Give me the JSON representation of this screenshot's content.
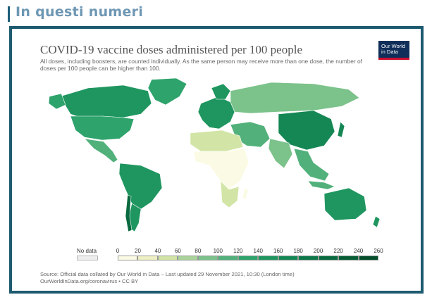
{
  "page": {
    "header_title": "In questi numeri"
  },
  "chart": {
    "title": "COVID-19 vaccine doses administered per 100 people",
    "subtitle": "All doses, including boosters, are counted individually. As the same person may receive more than one dose, the number of doses per 100 people can be higher than 100.",
    "logo_line1": "Our World",
    "logo_line2": "in Data",
    "source_line1": "Source: Official data collated by Our World in Data – Last updated 29 November 2021, 10:30 (London time)",
    "source_line2": "OurWorldInData.org/coronavirus • CC BY"
  },
  "legend": {
    "nodata_label": "No data",
    "nodata_color": "#eeeeee",
    "ticks": [
      "0",
      "20",
      "40",
      "60",
      "80",
      "100",
      "120",
      "140",
      "160",
      "180",
      "200",
      "220",
      "240",
      "260"
    ],
    "bins": [
      {
        "from": 0,
        "to": 20,
        "color": "#fbfbe5"
      },
      {
        "from": 20,
        "to": 40,
        "color": "#eef0c4"
      },
      {
        "from": 40,
        "to": 60,
        "color": "#d2e5a6"
      },
      {
        "from": 60,
        "to": 80,
        "color": "#a9d39a"
      },
      {
        "from": 80,
        "to": 100,
        "color": "#7cc28b"
      },
      {
        "from": 100,
        "to": 120,
        "color": "#52b17b"
      },
      {
        "from": 120,
        "to": 140,
        "color": "#2ea36c"
      },
      {
        "from": 140,
        "to": 160,
        "color": "#1f9660"
      },
      {
        "from": 160,
        "to": 180,
        "color": "#158754"
      },
      {
        "from": 180,
        "to": 200,
        "color": "#0c7849"
      },
      {
        "from": 200,
        "to": 220,
        "color": "#086a3f"
      },
      {
        "from": 220,
        "to": 240,
        "color": "#055c35"
      },
      {
        "from": 240,
        "to": 260,
        "color": "#034d2b"
      }
    ]
  },
  "map_regions": [
    {
      "name": "Canada",
      "value": 155
    },
    {
      "name": "United States",
      "value": 135
    },
    {
      "name": "Mexico",
      "value": 105
    },
    {
      "name": "Brazil",
      "value": 145
    },
    {
      "name": "Argentina",
      "value": 150
    },
    {
      "name": "Chile",
      "value": 200
    },
    {
      "name": "Greenland",
      "value": 130
    },
    {
      "name": "Europe",
      "value": 140
    },
    {
      "name": "Russia",
      "value": 85
    },
    {
      "name": "China",
      "value": 170
    },
    {
      "name": "India",
      "value": 85
    },
    {
      "name": "Australia",
      "value": 140
    },
    {
      "name": "North Africa",
      "value": 40
    },
    {
      "name": "Sub-Saharan Africa",
      "value": 10
    },
    {
      "name": "Southern Africa",
      "value": 50
    },
    {
      "name": "Middle East",
      "value": 100
    },
    {
      "name": "Southeast Asia",
      "value": 110
    }
  ],
  "colors": {
    "frame": "#1e5b70",
    "header_text": "#6e97b4",
    "logo_bg": "#0f2e59",
    "logo_accent": "#c8102e"
  }
}
